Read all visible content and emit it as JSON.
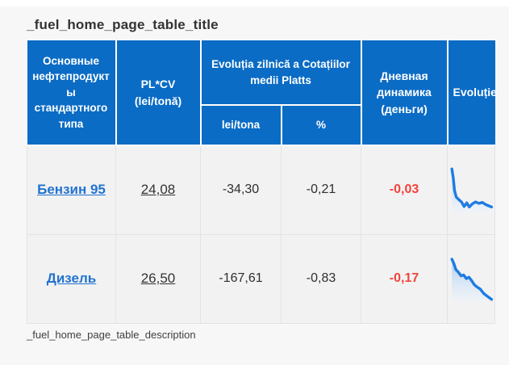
{
  "page": {
    "title": "_fuel_home_page_table_title",
    "description": "_fuel_home_page_table_description"
  },
  "colors": {
    "header_blue": "#0b6cc5",
    "link_blue": "#2273cf",
    "negative_red": "#f4433a",
    "spark_line_blue": "#1e7ce2",
    "spark_fill_top": "#a9cbf0",
    "spark_fill_bottom": "#eef4fb"
  },
  "table": {
    "headers": {
      "products": "Основные нефтепродукты стандартного типа",
      "plcv": "PL*CV (lei/tonă)",
      "evolution_group": "Evoluția zilnică a Cotațiilor medii Platts",
      "lei": "lei/tona",
      "percent": "%",
      "daily": "Дневная динамика (деньги)",
      "evolution": "Evoluție"
    },
    "rows": [
      {
        "name": "Бензин 95",
        "plcv": "24,08",
        "lei": "-34,30",
        "percent": "-0,21",
        "daily": "-0,03",
        "spark": {
          "type": "line",
          "points": [
            [
              6,
              4
            ],
            [
              9,
              24
            ],
            [
              12,
              52
            ],
            [
              16,
              66
            ],
            [
              22,
              72
            ],
            [
              28,
              77
            ],
            [
              34,
              87
            ],
            [
              40,
              79
            ],
            [
              46,
              88
            ],
            [
              53,
              81
            ],
            [
              60,
              77
            ],
            [
              68,
              80
            ],
            [
              76,
              78
            ],
            [
              84,
              83
            ],
            [
              97,
              88
            ]
          ]
        }
      },
      {
        "name": "Дизель",
        "plcv": "26,50",
        "lei": "-167,61",
        "percent": "-0,83",
        "daily": "-0,17",
        "spark": {
          "type": "line",
          "points": [
            [
              6,
              7
            ],
            [
              11,
              18
            ],
            [
              15,
              30
            ],
            [
              21,
              36
            ],
            [
              27,
              44
            ],
            [
              33,
              42
            ],
            [
              39,
              50
            ],
            [
              45,
              47
            ],
            [
              51,
              54
            ],
            [
              57,
              63
            ],
            [
              63,
              68
            ],
            [
              71,
              73
            ],
            [
              79,
              83
            ],
            [
              87,
              89
            ],
            [
              97,
              96
            ]
          ]
        }
      }
    ]
  }
}
